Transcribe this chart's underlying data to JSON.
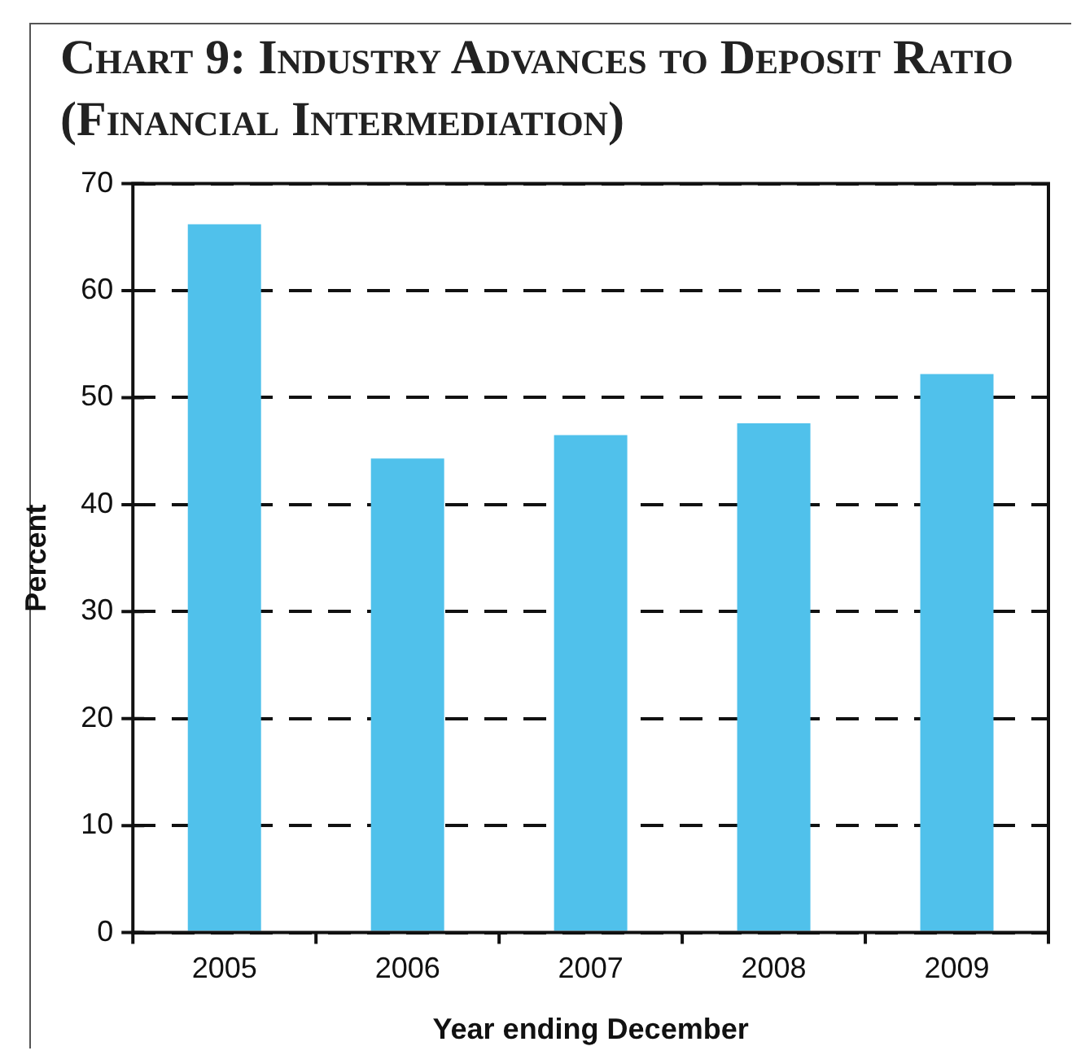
{
  "chart_data": {
    "type": "bar",
    "title": "Chart 9: Industry Advances to Deposit Ratio (Financial Intermediation)",
    "xlabel": "Year ending December",
    "ylabel": "Percent",
    "categories": [
      "2005",
      "2006",
      "2007",
      "2008",
      "2009"
    ],
    "values": [
      66.2,
      44.3,
      46.5,
      47.6,
      52.2
    ],
    "color": "#50c1eb",
    "ylim": [
      0,
      70
    ],
    "yticks": [
      0,
      10,
      20,
      30,
      40,
      50,
      60,
      70
    ],
    "grid": "y",
    "legend": false
  }
}
